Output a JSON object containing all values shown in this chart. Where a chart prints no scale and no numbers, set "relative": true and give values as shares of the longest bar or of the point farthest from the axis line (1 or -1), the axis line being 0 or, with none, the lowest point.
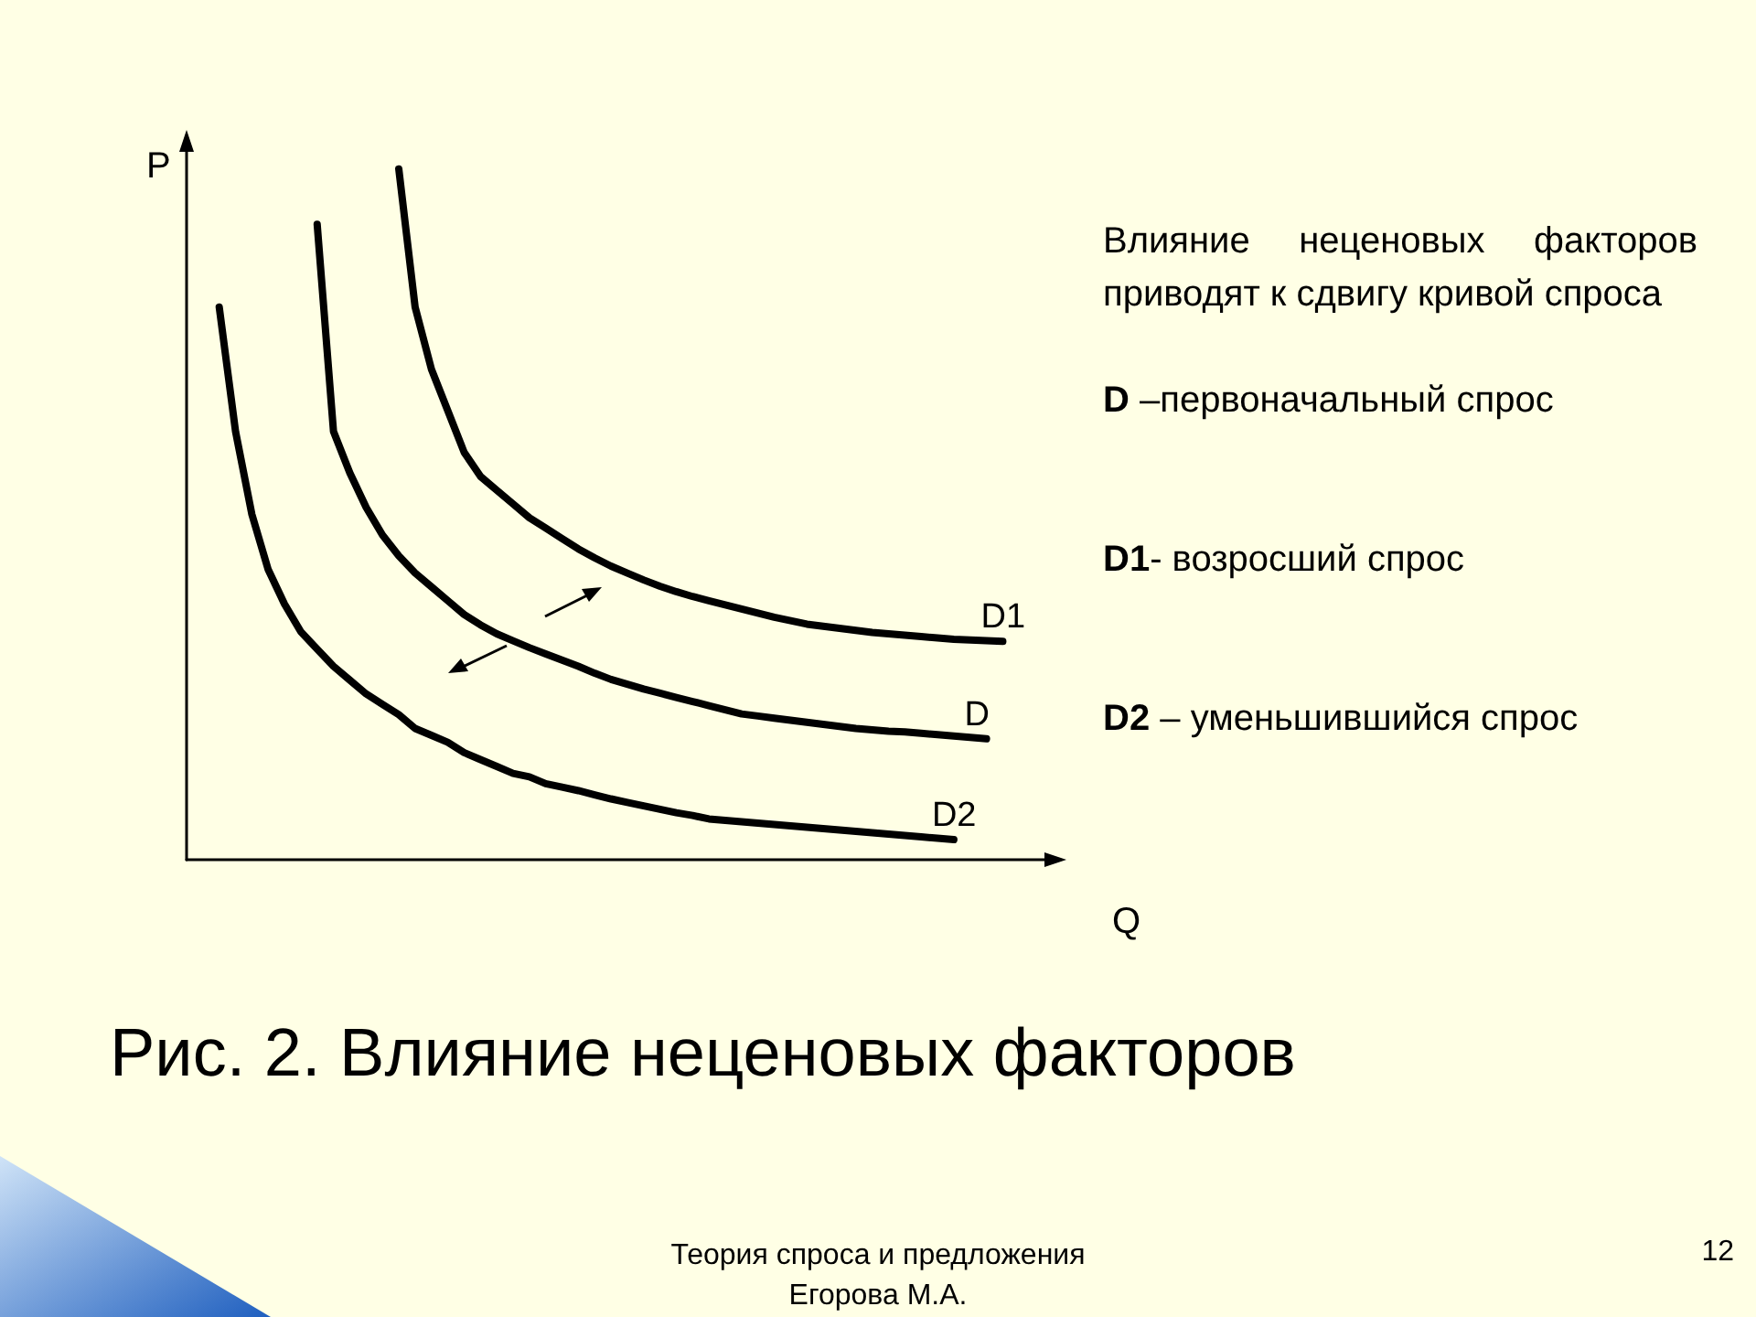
{
  "chart_data": {
    "type": "line",
    "relative": true,
    "title": "Рис. 2. Влияние неценовых факторов",
    "xlabel": "Q",
    "ylabel": "P",
    "grid": false,
    "legend": false,
    "marker": "none",
    "line_style": "solid",
    "annotations": [
      "Влияние неценовых факторов приводят к сдвигу кривой спроса",
      "D –первоначальный спрос",
      "D1- возросший спрос",
      "D2 – уменьшившийся спрос",
      "Теория спроса и предложения\nЕгорова М.А.",
      "12"
    ],
    "categories": [
      null,
      null,
      null,
      null,
      null,
      null,
      null,
      null,
      null,
      null,
      null,
      null,
      null,
      null,
      null,
      null,
      null,
      null,
      null,
      null,
      null,
      null,
      null,
      null,
      null,
      null,
      null,
      null,
      null,
      null,
      null,
      null,
      null,
      null,
      null,
      null,
      null,
      null,
      null,
      null,
      null,
      null,
      null,
      null,
      null,
      null,
      null,
      null,
      null,
      null,
      null,
      null,
      null,
      null
    ],
    "series": [
      {
        "name": "D1",
        "color": "#000000",
        "values": [
          null,
          null,
          null,
          null,
          null,
          null,
          null,
          null,
          null,
          null,
          null,
          null,
          null,
          1.0,
          0.8,
          0.71,
          0.65,
          0.59,
          0.555,
          0.535,
          0.515,
          0.495,
          0.48,
          0.465,
          0.45,
          0.437,
          0.425,
          0.415,
          0.405,
          0.396,
          0.388,
          0.381,
          0.375,
          0.369,
          0.363,
          0.357,
          0.351,
          0.346,
          0.341,
          0.338,
          0.335,
          0.332,
          0.329,
          0.327,
          0.325,
          0.323,
          0.321,
          0.319,
          0.318,
          0.317,
          0.316,
          null,
          null,
          null
        ]
      },
      {
        "name": "D",
        "color": "#000000",
        "values": [
          null,
          null,
          null,
          null,
          null,
          null,
          null,
          null,
          0.92,
          0.62,
          0.56,
          0.51,
          0.47,
          0.44,
          0.415,
          0.395,
          0.375,
          0.355,
          0.34,
          0.327,
          0.317,
          0.307,
          0.298,
          0.289,
          0.28,
          0.27,
          0.261,
          0.254,
          0.247,
          0.241,
          0.235,
          0.229,
          0.223,
          0.217,
          0.211,
          0.208,
          0.205,
          0.202,
          0.199,
          0.196,
          0.193,
          0.19,
          0.188,
          0.186,
          0.185,
          0.183,
          0.181,
          0.179,
          0.177,
          0.175,
          null,
          null,
          null,
          null
        ]
      },
      {
        "name": "D2",
        "color": "#000000",
        "values": [
          null,
          null,
          0.8,
          0.62,
          0.5,
          0.42,
          0.37,
          0.33,
          0.305,
          0.28,
          0.26,
          0.24,
          0.225,
          0.21,
          0.19,
          0.18,
          0.17,
          0.155,
          0.145,
          0.135,
          0.125,
          0.12,
          0.11,
          0.105,
          0.1,
          0.094,
          0.088,
          0.083,
          0.078,
          0.073,
          0.068,
          0.064,
          0.059,
          0.057,
          0.055,
          0.053,
          0.051,
          0.049,
          0.047,
          0.045,
          0.043,
          0.041,
          0.039,
          0.037,
          0.035,
          0.033,
          0.031,
          0.029,
          null,
          null,
          null,
          null,
          null,
          null
        ]
      }
    ]
  }
}
